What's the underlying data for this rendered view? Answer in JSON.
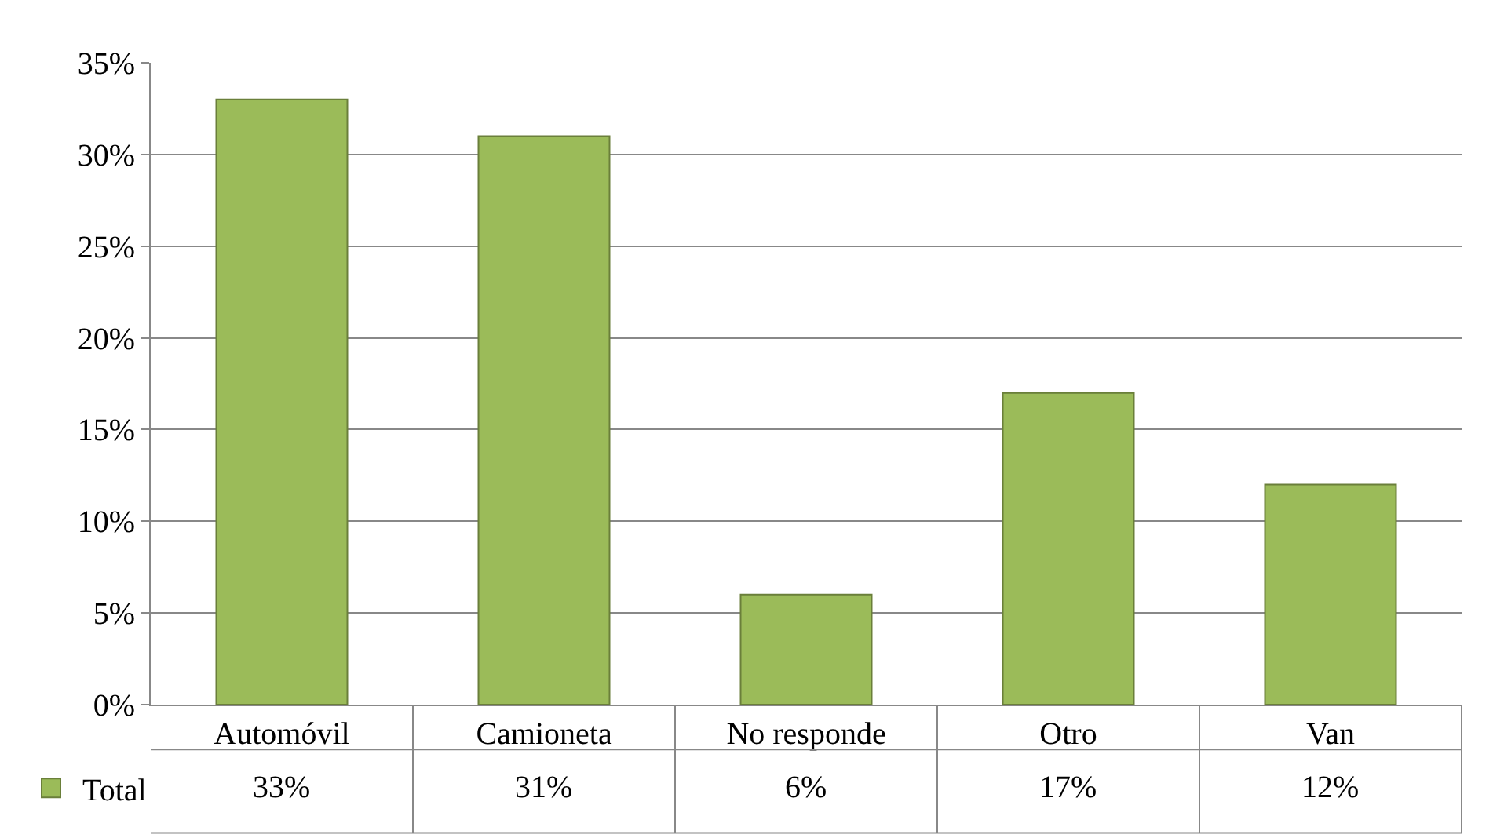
{
  "chart_data": {
    "type": "bar",
    "categories": [
      "Automóvil",
      "Camioneta",
      "No responde",
      "Otro",
      "Van"
    ],
    "series": [
      {
        "name": "Total",
        "color": "#9bbb59",
        "values": [
          33,
          31,
          6,
          17,
          12
        ],
        "value_labels": [
          "33%",
          "31%",
          "6%",
          "17%",
          "12%"
        ]
      }
    ],
    "ylim": [
      0,
      35
    ],
    "yticks": [
      {
        "value": 0,
        "label": "0%"
      },
      {
        "value": 5,
        "label": "5%"
      },
      {
        "value": 10,
        "label": "10%"
      },
      {
        "value": 15,
        "label": "15%"
      },
      {
        "value": 20,
        "label": "20%"
      },
      {
        "value": 25,
        "label": "25%"
      },
      {
        "value": 30,
        "label": "30%"
      },
      {
        "value": 35,
        "label": "35%"
      }
    ],
    "grid": "y",
    "legend": "bottom left"
  }
}
